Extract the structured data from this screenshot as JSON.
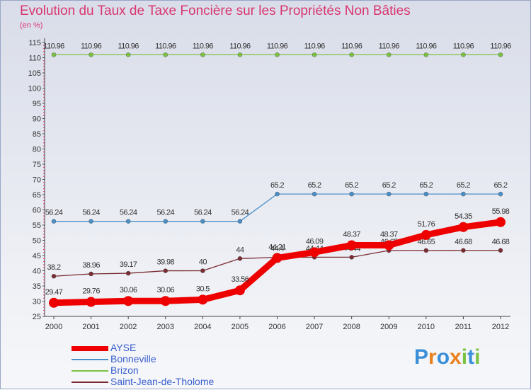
{
  "title": "Evolution du Taux de Taxe Foncière sur les Propriétés Non Bâties",
  "unit_label": "(en %)",
  "logo": {
    "letters": [
      "P",
      "r",
      "o",
      "x",
      "i",
      "t",
      "i"
    ],
    "colors": [
      "#3a8fd8",
      "#e8821e",
      "#3a8fd8",
      "#e8821e",
      "#7cc242",
      "#3a8fd8",
      "#7cc242"
    ]
  },
  "chart_data": {
    "type": "line",
    "title": "Evolution du Taux de Taxe Foncière sur les Propriétés Non Bâties",
    "ylabel": "(en %)",
    "xlabel": "",
    "x": [
      2000,
      2001,
      2002,
      2003,
      2004,
      2005,
      2006,
      2007,
      2008,
      2009,
      2010,
      2011,
      2012
    ],
    "ylim": [
      25,
      115
    ],
    "yticks": [
      25,
      30,
      35,
      40,
      45,
      50,
      55,
      60,
      65,
      70,
      75,
      80,
      85,
      90,
      95,
      100,
      105,
      110,
      115
    ],
    "grid": false,
    "legend_position": "bottom-left",
    "series": [
      {
        "name": "Brizon",
        "color": "#7cc242",
        "values": [
          110.96,
          110.96,
          110.96,
          110.96,
          110.96,
          110.96,
          110.96,
          110.96,
          110.96,
          110.96,
          110.96,
          110.96,
          110.96
        ],
        "labels": [
          "110.96",
          "110.96",
          "110.96",
          "110.96",
          "110.96",
          "110.96",
          "110.96",
          "110.96",
          "110.96",
          "110.96",
          "110.96",
          "110.96",
          "110.96"
        ]
      },
      {
        "name": "Bonneville",
        "color": "#4a90c8",
        "values": [
          56.24,
          56.24,
          56.24,
          56.24,
          56.24,
          56.24,
          65.2,
          65.2,
          65.2,
          65.2,
          65.2,
          65.2,
          65.2
        ],
        "labels": [
          "56.24",
          "56.24",
          "56.24",
          "56.24",
          "56.24",
          "56.24",
          "65.2",
          "65.2",
          "65.2",
          "65.2",
          "65.2",
          "65.2",
          "65.2"
        ]
      },
      {
        "name": "Saint-Jean-de-Tholome",
        "color": "#7a2c32",
        "values": [
          38.2,
          38.96,
          39.17,
          39.98,
          40,
          44,
          44.4,
          44.44,
          44.44,
          46.65,
          46.65,
          46.68,
          46.68
        ],
        "labels": [
          "38.2",
          "38.96",
          "39.17",
          "39.98",
          "40",
          "44",
          "44.4",
          "44.44",
          "44.44",
          "46.65",
          "46.65",
          "46.68",
          "46.68"
        ]
      },
      {
        "name": "AYSE",
        "color": "#ee0000",
        "values": [
          29.47,
          29.76,
          30.06,
          30.06,
          30.5,
          33.56,
          44.21,
          46.09,
          48.37,
          48.37,
          51.76,
          54.35,
          55.98
        ],
        "labels": [
          "29.47",
          "29.76",
          "30.06",
          "30.06",
          "30.5",
          "33.56",
          "44.21",
          "46.09",
          "48.37",
          "48.37",
          "51.76",
          "54.35",
          "55.98"
        ]
      }
    ],
    "legend": [
      "AYSE",
      "Bonneville",
      "Brizon",
      "Saint-Jean-de-Tholome"
    ]
  }
}
